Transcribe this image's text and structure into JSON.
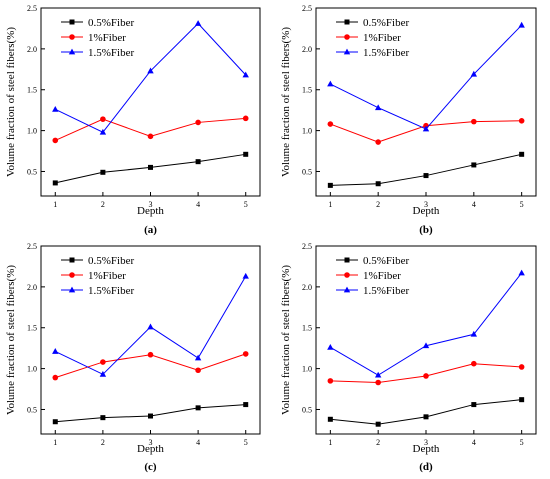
{
  "chart_data": [
    {
      "type": "line",
      "panel_label": "(a)",
      "xlabel": "Depth",
      "ylabel": "Volume fraction of steel fibers(%)",
      "x": [
        1,
        2,
        3,
        4,
        5
      ],
      "xlim": [
        0.7,
        5.3
      ],
      "ylim": [
        0.2,
        2.5
      ],
      "yticks": [
        0.5,
        1.0,
        1.5,
        2.0,
        2.5
      ],
      "ytick_labels": [
        "0.5",
        "1.0",
        "1.5",
        "2.0",
        "2.5"
      ],
      "grid": false,
      "legend_position": "top-left",
      "series": [
        {
          "name": "0.5%Fiber",
          "color": "#000000",
          "marker": "square",
          "values": [
            0.36,
            0.49,
            0.55,
            0.62,
            0.71
          ]
        },
        {
          "name": "1%Fiber",
          "color": "#ff0000",
          "marker": "circle",
          "values": [
            0.88,
            1.14,
            0.93,
            1.1,
            1.15
          ]
        },
        {
          "name": "1.5%Fiber",
          "color": "#0000ff",
          "marker": "triangle",
          "values": [
            1.26,
            0.98,
            1.73,
            2.31,
            1.68
          ]
        }
      ]
    },
    {
      "type": "line",
      "panel_label": "(b)",
      "xlabel": "Depth",
      "ylabel": "Volume fraction of steel fibers(%)",
      "x": [
        1,
        2,
        3,
        4,
        5
      ],
      "xlim": [
        0.7,
        5.3
      ],
      "ylim": [
        0.2,
        2.5
      ],
      "yticks": [
        0.5,
        1.0,
        1.5,
        2.0,
        2.5
      ],
      "ytick_labels": [
        "0.5",
        "1.0",
        "1.5",
        "2.0",
        "2.5"
      ],
      "grid": false,
      "legend_position": "top-left",
      "series": [
        {
          "name": "0.5%Fiber",
          "color": "#000000",
          "marker": "square",
          "values": [
            0.33,
            0.35,
            0.45,
            0.58,
            0.71
          ]
        },
        {
          "name": "1%Fiber",
          "color": "#ff0000",
          "marker": "circle",
          "values": [
            1.08,
            0.86,
            1.06,
            1.11,
            1.12
          ]
        },
        {
          "name": "1.5%Fiber",
          "color": "#0000ff",
          "marker": "triangle",
          "values": [
            1.57,
            1.28,
            1.02,
            1.69,
            2.29
          ]
        }
      ]
    },
    {
      "type": "line",
      "panel_label": "(c)",
      "xlabel": "Depth",
      "ylabel": "Volume fraction of steel fibers(%)",
      "x": [
        1,
        2,
        3,
        4,
        5
      ],
      "xlim": [
        0.7,
        5.3
      ],
      "ylim": [
        0.2,
        2.5
      ],
      "yticks": [
        0.5,
        1.0,
        1.5,
        2.0,
        2.5
      ],
      "ytick_labels": [
        "0.5",
        "1.0",
        "1.5",
        "2.0",
        "2.5"
      ],
      "grid": false,
      "legend_position": "top-left",
      "series": [
        {
          "name": "0.5%Fiber",
          "color": "#000000",
          "marker": "square",
          "values": [
            0.35,
            0.4,
            0.42,
            0.52,
            0.56
          ]
        },
        {
          "name": "1%Fiber",
          "color": "#ff0000",
          "marker": "circle",
          "values": [
            0.89,
            1.08,
            1.17,
            0.98,
            1.18
          ]
        },
        {
          "name": "1.5%Fiber",
          "color": "#0000ff",
          "marker": "triangle",
          "values": [
            1.21,
            0.93,
            1.51,
            1.13,
            2.13
          ]
        }
      ]
    },
    {
      "type": "line",
      "panel_label": "(d)",
      "xlabel": "Depth",
      "ylabel": "Volume fraction of steel fibers(%)",
      "x": [
        1,
        2,
        3,
        4,
        5
      ],
      "xlim": [
        0.7,
        5.3
      ],
      "ylim": [
        0.2,
        2.5
      ],
      "yticks": [
        0.5,
        1.0,
        1.5,
        2.0,
        2.5
      ],
      "ytick_labels": [
        "0.5",
        "1.0",
        "1.5",
        "2.0",
        "2.5"
      ],
      "grid": false,
      "legend_position": "top-left",
      "series": [
        {
          "name": "0.5%Fiber",
          "color": "#000000",
          "marker": "square",
          "values": [
            0.38,
            0.32,
            0.41,
            0.56,
            0.62
          ]
        },
        {
          "name": "1%Fiber",
          "color": "#ff0000",
          "marker": "circle",
          "values": [
            0.85,
            0.83,
            0.91,
            1.06,
            1.02
          ]
        },
        {
          "name": "1.5%Fiber",
          "color": "#0000ff",
          "marker": "triangle",
          "values": [
            1.26,
            0.92,
            1.28,
            1.42,
            2.17
          ]
        }
      ]
    }
  ]
}
